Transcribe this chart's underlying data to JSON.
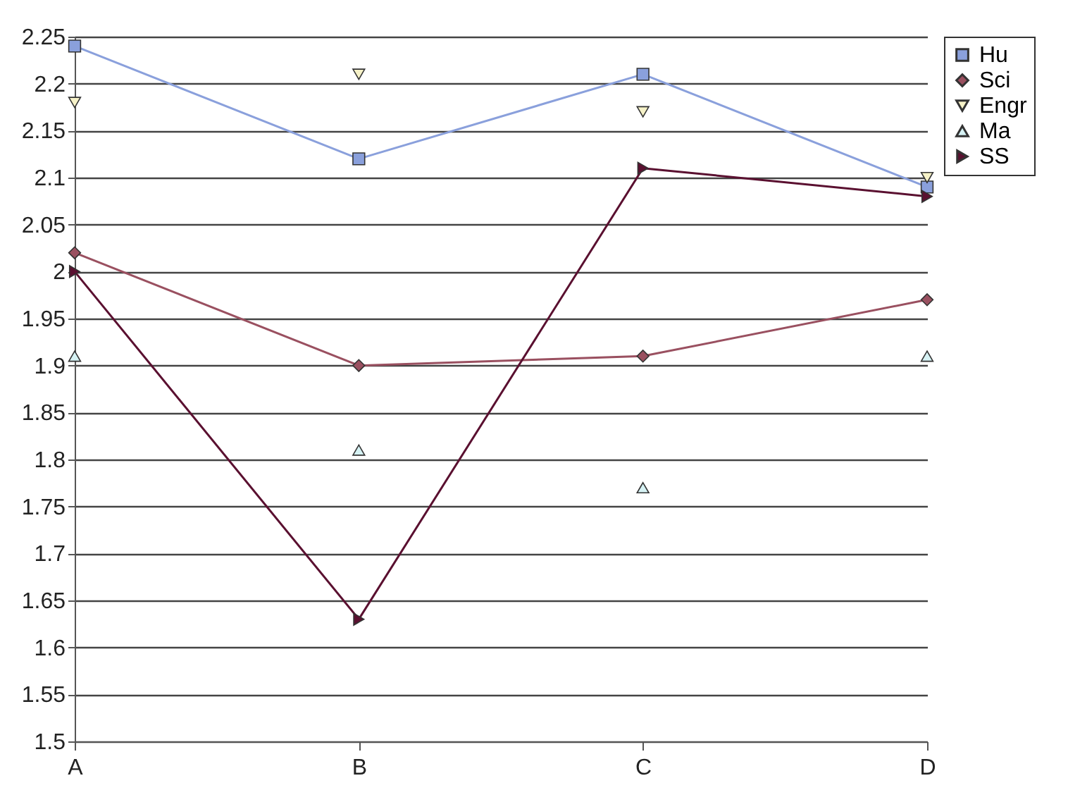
{
  "chart_data": {
    "type": "line",
    "categories": [
      "A",
      "B",
      "C",
      "D"
    ],
    "series": [
      {
        "name": "Hu",
        "marker": "square",
        "color": "#8aa0dc",
        "values": [
          2.24,
          2.12,
          2.21,
          2.09
        ]
      },
      {
        "name": "Sci",
        "marker": "diamond",
        "color": "#9a5060",
        "values": [
          2.02,
          1.9,
          1.91,
          1.97
        ]
      },
      {
        "name": "Engr",
        "type": "scatter",
        "marker": "triangle-down",
        "color": "#f6f2c8",
        "values": [
          2.18,
          2.21,
          2.17,
          2.1
        ]
      },
      {
        "name": "Ma",
        "type": "scatter",
        "marker": "triangle-up",
        "color": "#d6f2f4",
        "values": [
          1.91,
          1.81,
          1.77,
          1.91
        ]
      },
      {
        "name": "SS",
        "marker": "triangle-right",
        "color": "#5a1030",
        "values": [
          2.0,
          1.63,
          2.11,
          2.08
        ]
      }
    ],
    "ylim": [
      1.5,
      2.25
    ],
    "yticks": [
      1.5,
      1.55,
      1.6,
      1.65,
      1.7,
      1.75,
      1.8,
      1.85,
      1.9,
      1.95,
      2,
      2.05,
      2.1,
      2.15,
      2.2,
      2.25
    ],
    "grid": "y",
    "legend": "right"
  }
}
